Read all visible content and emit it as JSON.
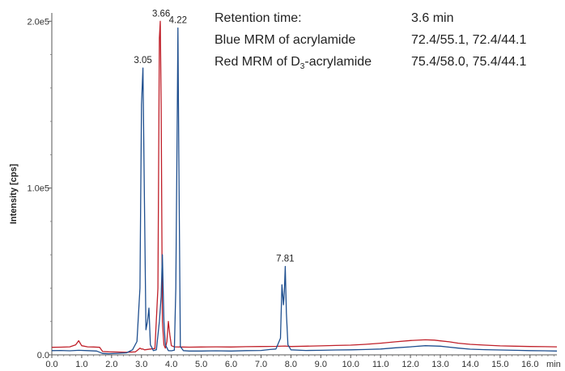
{
  "chart_data": {
    "type": "line",
    "title": "",
    "xlabel": "min",
    "ylabel": "Intensity [cps]",
    "xlim": [
      0.0,
      16.9
    ],
    "ylim": [
      0,
      205000
    ],
    "x_ticks": [
      "0.0",
      "1.0",
      "2.0",
      "3.0",
      "4.0",
      "5.0",
      "6.0",
      "7.0",
      "8.0",
      "9.0",
      "10.0",
      "11.0",
      "12.0",
      "13.0",
      "14.0",
      "15.0",
      "16.0"
    ],
    "x_tick_values": [
      0,
      1,
      2,
      3,
      4,
      5,
      6,
      7,
      8,
      9,
      10,
      11,
      12,
      13,
      14,
      15,
      16
    ],
    "y_ticks": [
      "0.0",
      "1.0e5",
      "2.0e5"
    ],
    "y_tick_values": [
      0,
      100000,
      200000
    ],
    "grid": false,
    "legend": "none",
    "annotations": {
      "row1": {
        "label": "Retention time:",
        "value": "3.6 min"
      },
      "row2": {
        "label": "Blue MRM of acrylamide",
        "value": "72.4/55.1, 72.4/44.1"
      },
      "row3": {
        "label_pre": "Red MRM of D",
        "label_sub": "3",
        "label_post": "-acrylamide",
        "value": "75.4/58.0, 75.4/44.1"
      }
    },
    "peak_labels": [
      {
        "text": "3.05",
        "x": 3.05,
        "y": 172000
      },
      {
        "text": "3.66",
        "x": 3.66,
        "y": 200000
      },
      {
        "text": "4.22",
        "x": 4.22,
        "y": 196000
      },
      {
        "text": "7.81",
        "x": 7.81,
        "y": 53000
      }
    ],
    "series": [
      {
        "color": "#1f4f8f",
        "x": [
          0.0,
          0.3,
          0.6,
          0.9,
          1.2,
          1.5,
          1.7,
          1.9,
          2.2,
          2.5,
          2.7,
          2.85,
          2.95,
          3.0,
          3.05,
          3.1,
          3.15,
          3.2,
          3.25,
          3.3,
          3.4,
          3.5,
          3.6,
          3.66,
          3.7,
          3.75,
          3.8,
          3.9,
          4.0,
          4.1,
          4.15,
          4.2,
          4.22,
          4.25,
          4.3,
          4.4,
          4.6,
          5.0,
          5.5,
          6.0,
          6.5,
          7.0,
          7.3,
          7.5,
          7.65,
          7.7,
          7.75,
          7.78,
          7.81,
          7.85,
          7.9,
          8.0,
          8.5,
          9.0,
          9.5,
          10.0,
          10.5,
          11.0,
          11.5,
          12.0,
          12.5,
          13.0,
          13.3,
          13.6,
          14.0,
          14.5,
          15.0,
          15.5,
          16.0,
          16.5,
          16.9
        ],
        "y": [
          2500,
          2600,
          2400,
          2700,
          2500,
          2300,
          800,
          700,
          900,
          1200,
          3000,
          8000,
          40000,
          150000,
          172000,
          90000,
          15000,
          20000,
          28000,
          6000,
          2500,
          3000,
          20000,
          35000,
          60000,
          20000,
          6000,
          2500,
          2400,
          2800,
          40000,
          150000,
          196000,
          120000,
          5000,
          2500,
          2300,
          2300,
          2400,
          2300,
          2500,
          2600,
          3200,
          3500,
          10000,
          42000,
          30000,
          38000,
          53000,
          25000,
          6000,
          3000,
          2600,
          2700,
          2900,
          3000,
          3200,
          3500,
          4200,
          4800,
          5500,
          5200,
          4600,
          4000,
          3400,
          3100,
          2900,
          2700,
          2500,
          2400,
          2300
        ]
      },
      {
        "color": "#c0202a",
        "x": [
          0.0,
          0.3,
          0.6,
          0.8,
          0.9,
          1.0,
          1.2,
          1.4,
          1.6,
          1.7,
          1.9,
          2.2,
          2.5,
          2.8,
          2.95,
          3.0,
          3.05,
          3.1,
          3.3,
          3.45,
          3.55,
          3.6,
          3.63,
          3.66,
          3.7,
          3.75,
          3.8,
          3.85,
          3.9,
          3.95,
          4.0,
          4.1,
          4.3,
          4.6,
          5.0,
          5.5,
          6.0,
          6.5,
          7.0,
          7.5,
          7.8,
          8.0,
          8.5,
          9.0,
          9.5,
          10.0,
          10.5,
          11.0,
          11.5,
          12.0,
          12.5,
          12.8,
          13.0,
          13.3,
          13.6,
          14.0,
          14.5,
          15.0,
          15.5,
          16.0,
          16.5,
          16.9
        ],
        "y": [
          4500,
          4600,
          4800,
          6000,
          8500,
          5500,
          4800,
          4700,
          4500,
          2000,
          1800,
          1700,
          1500,
          1800,
          4000,
          3500,
          3500,
          3000,
          3500,
          3800,
          40000,
          190000,
          200000,
          150000,
          20000,
          6000,
          4000,
          8000,
          20000,
          12000,
          5500,
          4800,
          4700,
          4600,
          4700,
          4800,
          4700,
          4900,
          5000,
          5100,
          5300,
          5000,
          5200,
          5400,
          5600,
          5800,
          6300,
          7000,
          7800,
          8600,
          9000,
          8800,
          8400,
          7800,
          7000,
          6300,
          5800,
          5400,
          5200,
          5000,
          4900,
          4800
        ]
      }
    ]
  }
}
